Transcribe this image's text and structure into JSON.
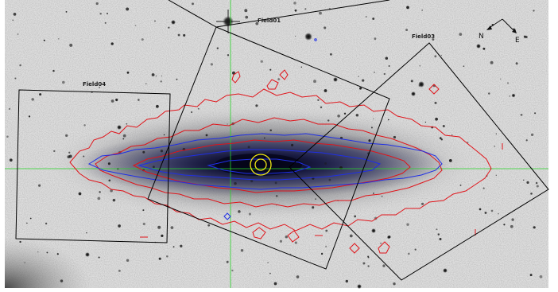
{
  "fields": [
    {
      "id": "field01",
      "label": "Field01"
    },
    {
      "id": "field03",
      "label": "Field03"
    },
    {
      "id": "field04",
      "label": "Field04"
    }
  ],
  "compass": {
    "north_label": "N",
    "east_label": "E"
  },
  "colors": {
    "field_outline": "#000000",
    "outer_isophotes": "#e0141a",
    "inner_isophotes": "#1f2fe6",
    "center_marker": "#f2ea12",
    "crosshair": "#26d426"
  }
}
